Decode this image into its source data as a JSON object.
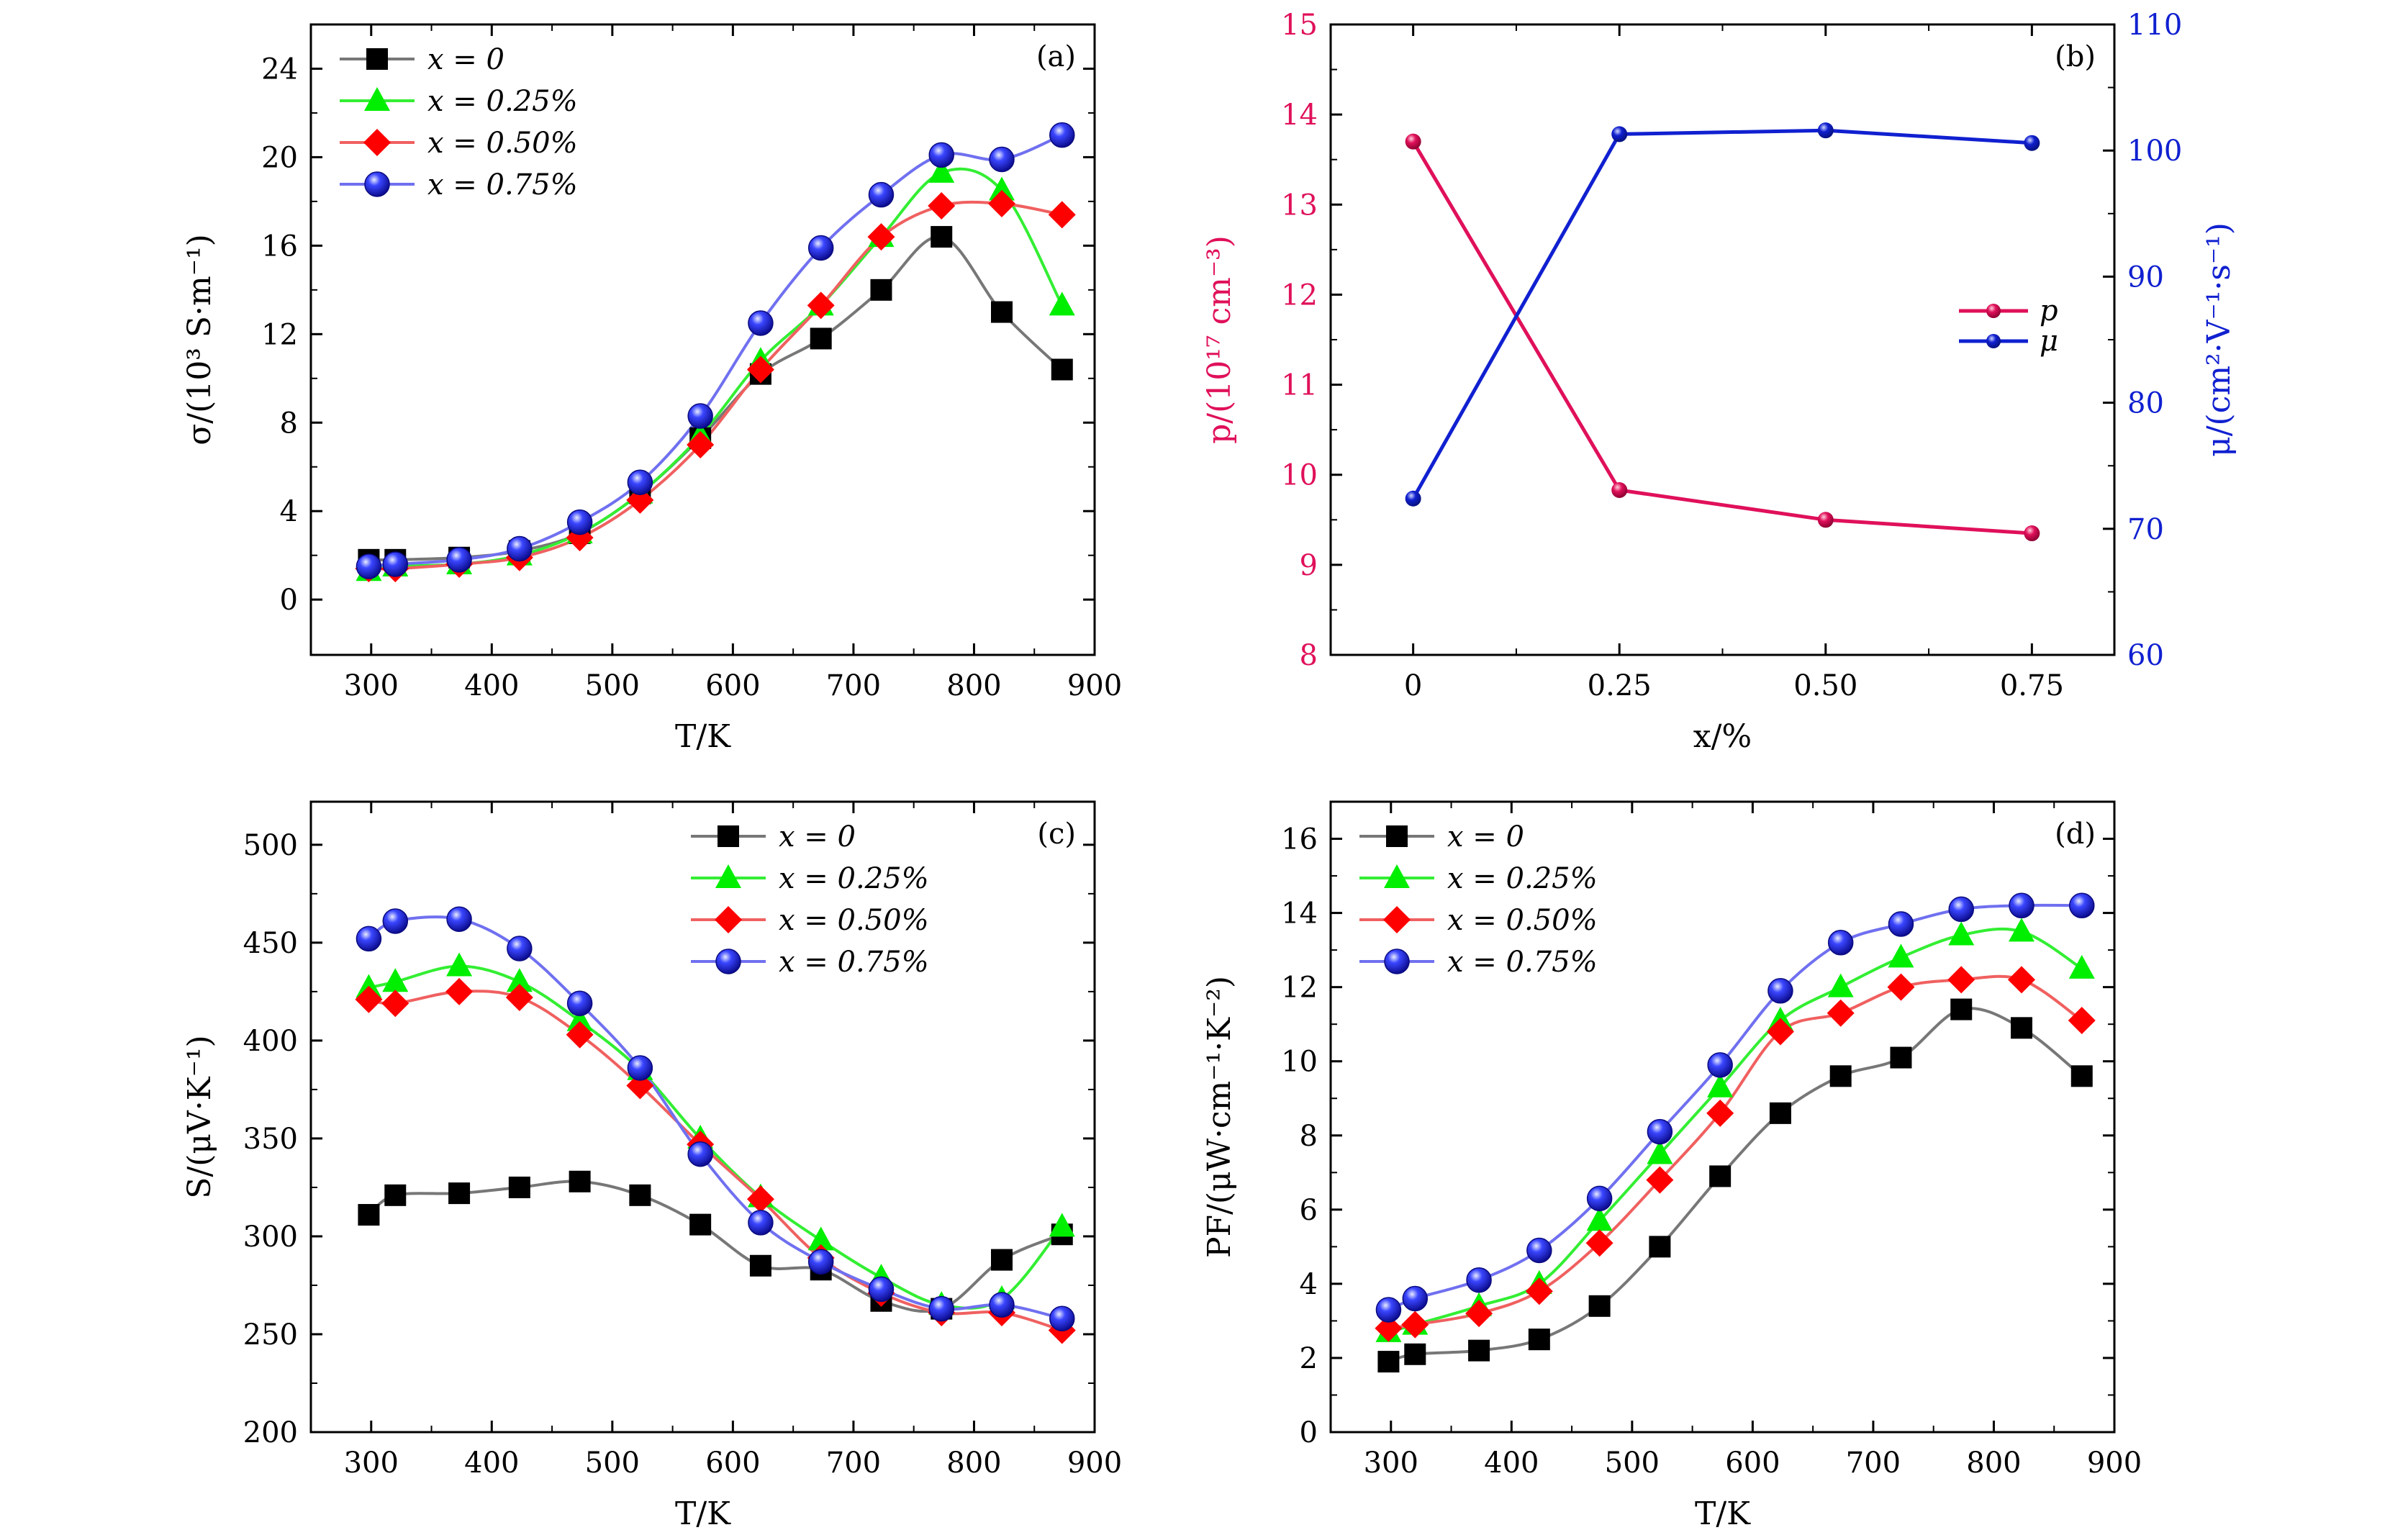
{
  "chart_data": [
    {
      "type": "line",
      "panel_label": "(a)",
      "xlabel": "T/K",
      "ylabel": "σ/(10³ S·m⁻¹)",
      "xlim": [
        250,
        900
      ],
      "ylim": [
        -2.5,
        26
      ],
      "xticks": [
        300,
        400,
        500,
        600,
        700,
        800,
        900
      ],
      "yticks": [
        0,
        4,
        8,
        12,
        16,
        20,
        24
      ],
      "legend_position": "top-left",
      "x": [
        298,
        320,
        373,
        423,
        473,
        523,
        573,
        623,
        673,
        723,
        773,
        823,
        873
      ],
      "series": [
        {
          "name": "x = 0",
          "color": "#000000",
          "line": "#777777",
          "marker": "square",
          "values": [
            1.8,
            1.8,
            1.9,
            2.2,
            3.0,
            4.8,
            7.3,
            10.2,
            11.8,
            14.0,
            16.4,
            13.0,
            10.4
          ]
        },
        {
          "name": "x = 0.25%",
          "color": "#00ee00",
          "line": "#33ee33",
          "marker": "triangle",
          "values": [
            1.3,
            1.5,
            1.6,
            2.0,
            3.0,
            4.8,
            7.4,
            10.8,
            13.3,
            16.4,
            19.3,
            18.5,
            13.3
          ]
        },
        {
          "name": "x = 0.50%",
          "color": "#ff0000",
          "line": "#f06060",
          "marker": "diamond",
          "values": [
            1.4,
            1.4,
            1.6,
            1.9,
            2.8,
            4.5,
            7.0,
            10.4,
            13.3,
            16.4,
            17.8,
            17.9,
            17.4
          ]
        },
        {
          "name": "x = 0.75%",
          "color": "#1010ee",
          "line": "#7070f0",
          "marker": "sphere",
          "values": [
            1.5,
            1.6,
            1.8,
            2.3,
            3.5,
            5.3,
            8.3,
            12.5,
            15.9,
            18.3,
            20.1,
            19.9,
            21.0
          ]
        }
      ]
    },
    {
      "type": "line",
      "panel_label": "(b)",
      "xlabel": "x/%",
      "ylabel": "p/(10¹⁷ cm⁻³)",
      "y2label": "μ/(cm²·V⁻¹·s⁻¹)",
      "xlim": [
        -0.1,
        0.85
      ],
      "ylim": [
        8,
        15
      ],
      "y2lim": [
        60,
        110
      ],
      "xticks": [
        0,
        0.25,
        0.5,
        0.75
      ],
      "xticklabels": [
        "0",
        "0.25",
        "0.50",
        "0.75"
      ],
      "yticks": [
        8,
        9,
        10,
        11,
        12,
        13,
        14,
        15
      ],
      "y2ticks": [
        60,
        70,
        80,
        90,
        100,
        110
      ],
      "legend_position": "center-right",
      "x": [
        0,
        0.25,
        0.5,
        0.75
      ],
      "series": [
        {
          "name": "p",
          "color": "#e0105a",
          "axis": "left",
          "values": [
            13.7,
            9.83,
            9.5,
            9.35
          ]
        },
        {
          "name": "μ",
          "color": "#1020d0",
          "axis": "right",
          "values": [
            72.4,
            101.3,
            101.6,
            100.6
          ]
        }
      ]
    },
    {
      "type": "line",
      "panel_label": "(c)",
      "xlabel": "T/K",
      "ylabel": "S/(μV·K⁻¹)",
      "xlim": [
        250,
        900
      ],
      "ylim": [
        200,
        522
      ],
      "xticks": [
        300,
        400,
        500,
        600,
        700,
        800,
        900
      ],
      "yticks": [
        200,
        250,
        300,
        350,
        400,
        450,
        500
      ],
      "legend_position": "top-right",
      "x": [
        298,
        320,
        373,
        423,
        473,
        523,
        573,
        623,
        673,
        723,
        773,
        823,
        873
      ],
      "series": [
        {
          "name": "x = 0",
          "color": "#000000",
          "line": "#777777",
          "marker": "square",
          "values": [
            311,
            321,
            322,
            325,
            328,
            321,
            306,
            285,
            283,
            267,
            263,
            288,
            301
          ]
        },
        {
          "name": "x = 0.25%",
          "color": "#00ee00",
          "line": "#33ee33",
          "marker": "triangle",
          "values": [
            427,
            430,
            438,
            430,
            410,
            385,
            350,
            320,
            298,
            279,
            265,
            268,
            305
          ]
        },
        {
          "name": "x = 0.50%",
          "color": "#ff0000",
          "line": "#f06060",
          "marker": "diamond",
          "values": [
            421,
            419,
            425,
            422,
            403,
            377,
            347,
            319,
            289,
            271,
            261,
            261,
            252
          ]
        },
        {
          "name": "x = 0.75%",
          "color": "#1010ee",
          "line": "#7070f0",
          "marker": "sphere",
          "values": [
            452,
            461,
            462,
            447,
            419,
            386,
            342,
            307,
            287,
            273,
            263,
            265,
            258
          ]
        }
      ]
    },
    {
      "type": "line",
      "panel_label": "(d)",
      "xlabel": "T/K",
      "ylabel": "PF/(μW·cm⁻¹·K⁻²)",
      "xlim": [
        250,
        900
      ],
      "ylim": [
        0,
        17
      ],
      "xticks": [
        300,
        400,
        500,
        600,
        700,
        800,
        900
      ],
      "yticks": [
        0,
        2,
        4,
        6,
        8,
        10,
        12,
        14,
        16
      ],
      "legend_position": "top-left",
      "x": [
        298,
        320,
        373,
        423,
        473,
        523,
        573,
        623,
        673,
        723,
        773,
        823,
        873
      ],
      "series": [
        {
          "name": "x = 0",
          "color": "#000000",
          "line": "#777777",
          "marker": "square",
          "values": [
            1.9,
            2.1,
            2.2,
            2.5,
            3.4,
            5.0,
            6.9,
            8.6,
            9.6,
            10.1,
            11.4,
            10.9,
            9.6
          ]
        },
        {
          "name": "x = 0.25%",
          "color": "#00ee00",
          "line": "#33ee33",
          "marker": "triangle",
          "values": [
            2.7,
            2.9,
            3.4,
            4.0,
            5.7,
            7.5,
            9.3,
            11.1,
            12.0,
            12.8,
            13.4,
            13.5,
            12.5
          ]
        },
        {
          "name": "x = 0.50%",
          "color": "#ff0000",
          "line": "#f06060",
          "marker": "diamond",
          "values": [
            2.8,
            2.9,
            3.2,
            3.8,
            5.1,
            6.8,
            8.6,
            10.8,
            11.3,
            12.0,
            12.2,
            12.2,
            11.1
          ]
        },
        {
          "name": "x = 0.75%",
          "color": "#1010ee",
          "line": "#7070f0",
          "marker": "sphere",
          "values": [
            3.3,
            3.6,
            4.1,
            4.9,
            6.3,
            8.1,
            9.9,
            11.9,
            13.2,
            13.7,
            14.1,
            14.2,
            14.2
          ]
        }
      ]
    }
  ]
}
